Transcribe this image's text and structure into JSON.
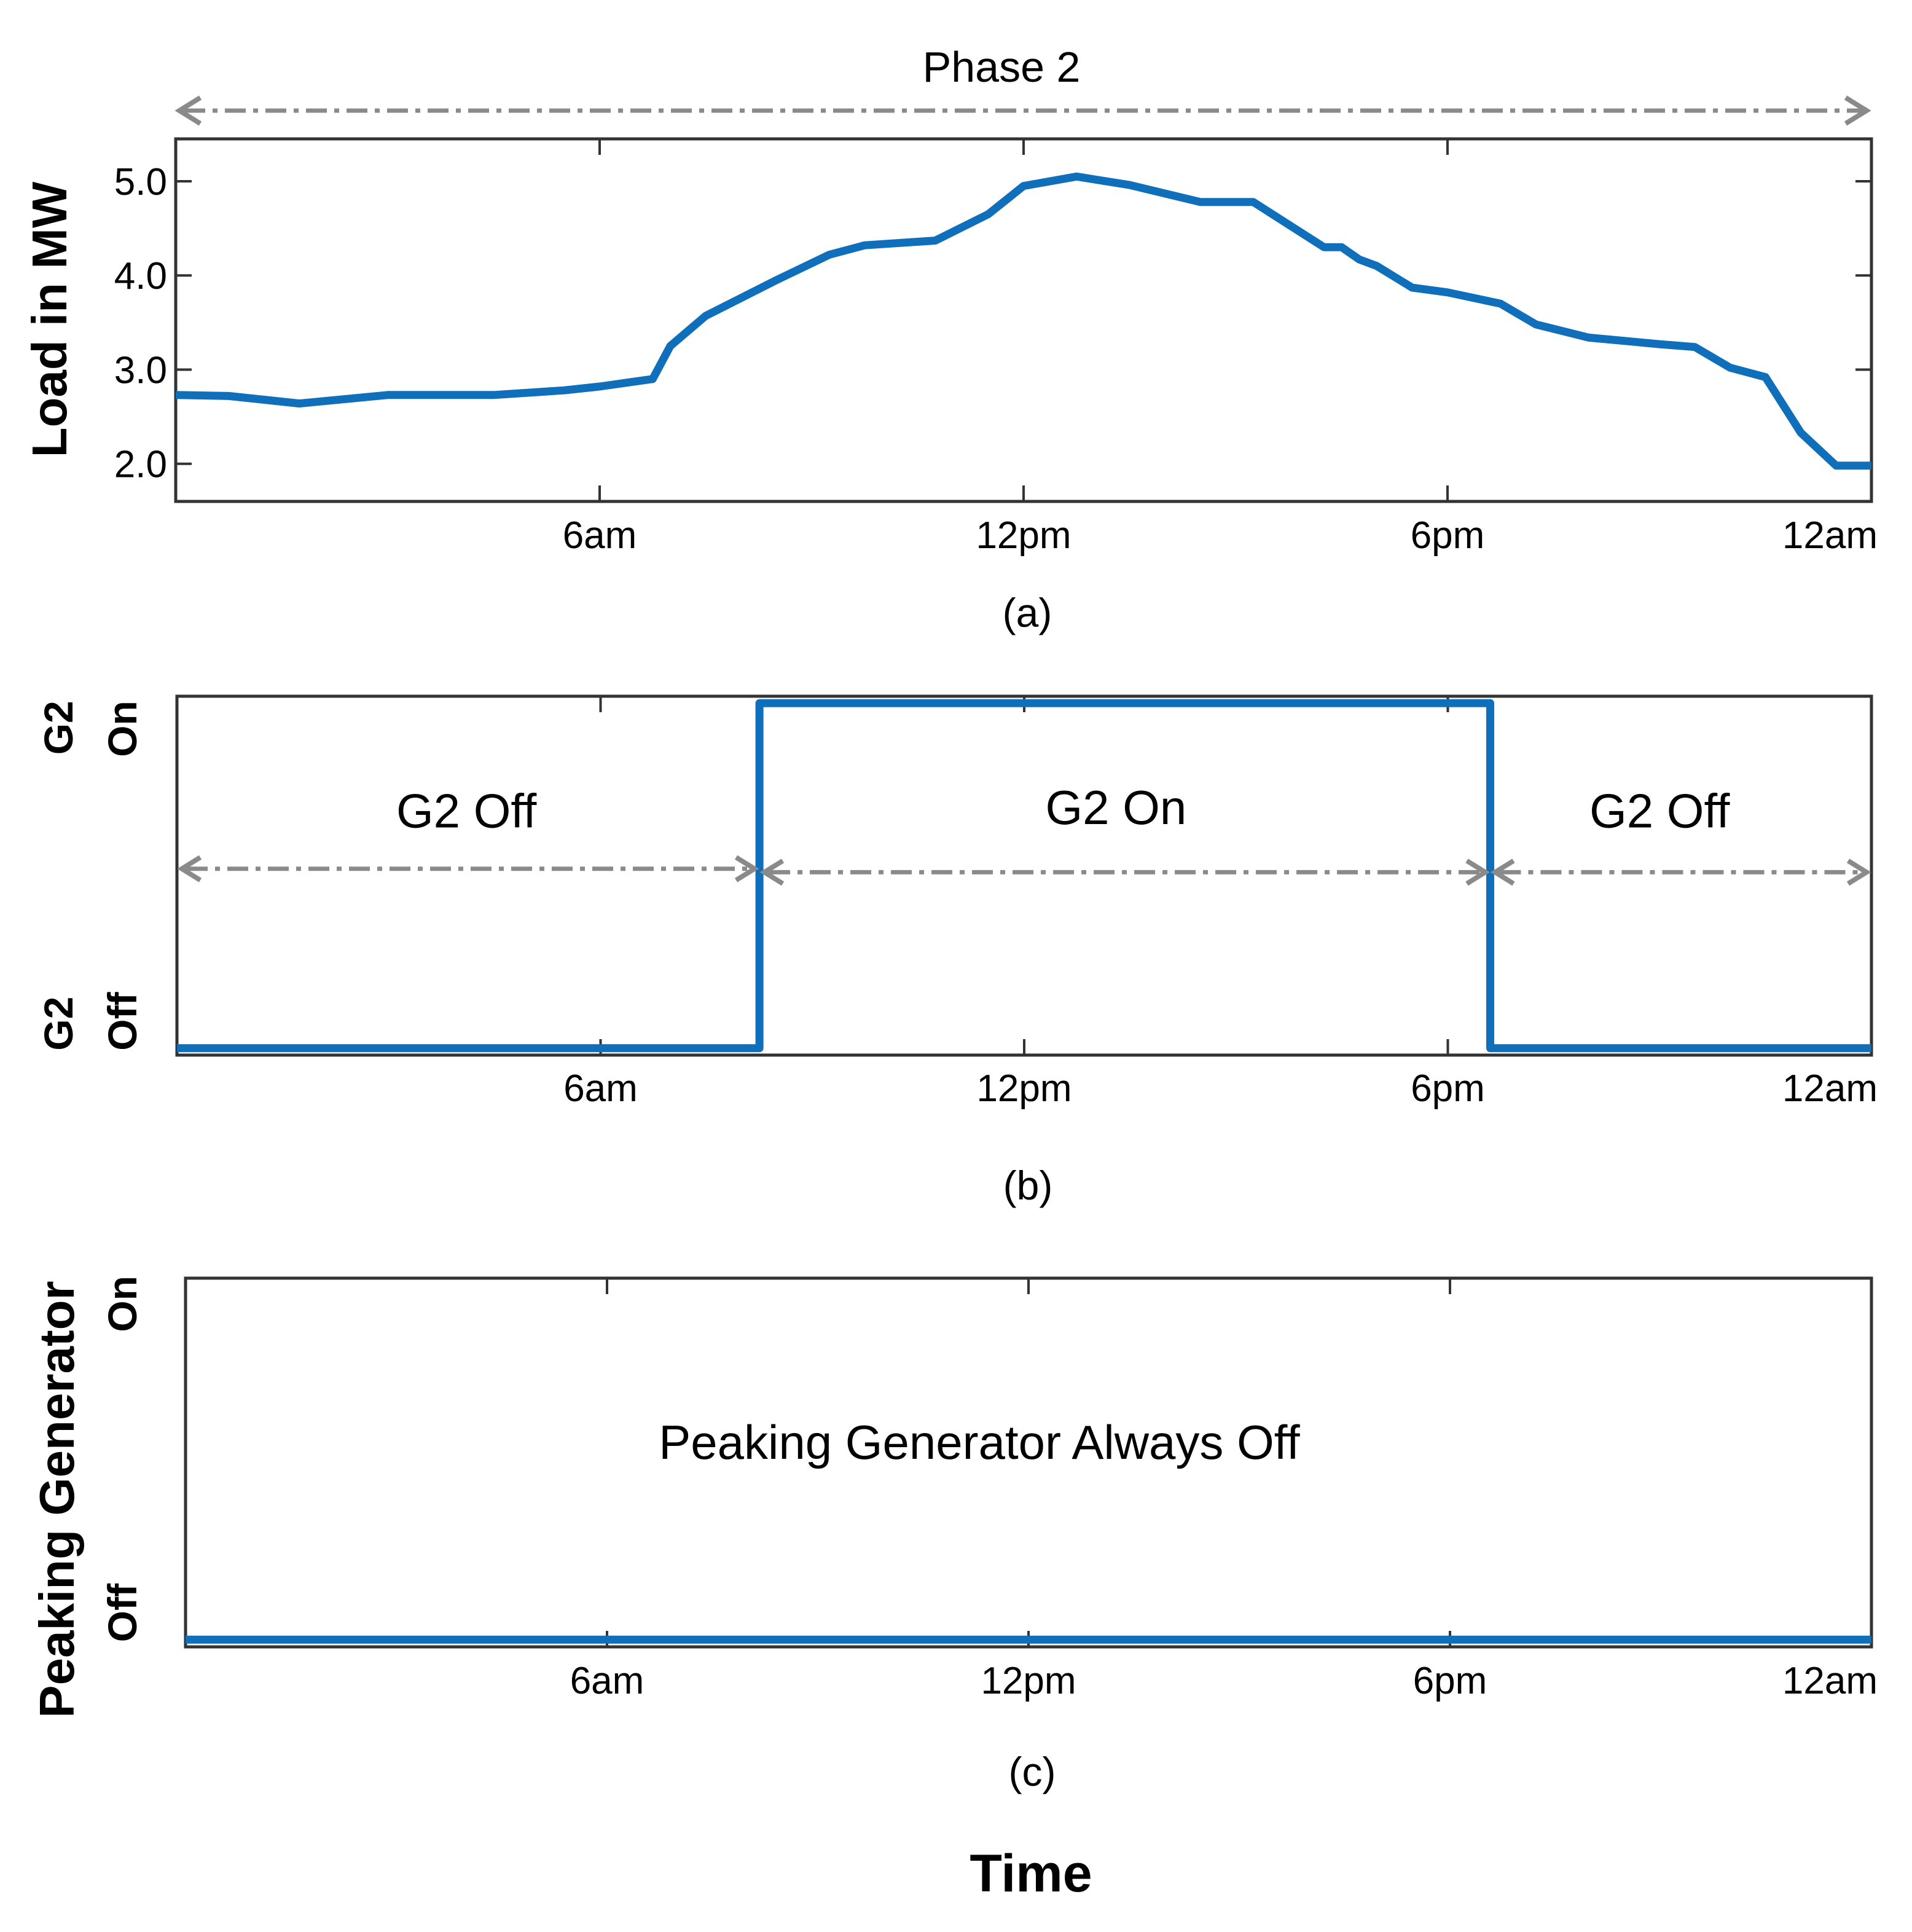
{
  "figure": {
    "top_annotation": "Phase 2",
    "x_axis_title": "Time"
  },
  "colors": {
    "series": "#0f6fba",
    "arrow": "#8a8a8a"
  },
  "chart_data": [
    {
      "id": "a",
      "type": "line",
      "caption": "(a)",
      "ylabel": "Load in MW",
      "xlim": [
        0,
        24
      ],
      "ylim": [
        1.6,
        5.45
      ],
      "xticks": [
        6,
        12,
        18,
        24
      ],
      "xtick_labels": [
        "6am",
        "12pm",
        "6pm",
        "12am"
      ],
      "yticks": [
        2.0,
        3.0,
        4.0,
        5.0
      ],
      "ytick_labels": [
        "2.0",
        "3.0",
        "4.0",
        "5.0"
      ],
      "series": [
        {
          "name": "Load",
          "x": [
            0,
            0.75,
            1.75,
            3,
            4.5,
            5.5,
            6,
            6.75,
            7,
            7.5,
            8.5,
            9.25,
            9.75,
            10.75,
            11.5,
            12,
            12.75,
            13.5,
            14.5,
            15.25,
            16.25,
            16.5,
            16.75,
            17,
            17.5,
            18,
            18.75,
            19.25,
            20,
            21,
            21.5,
            22,
            22.5,
            23,
            23.5,
            24
          ],
          "y": [
            2.73,
            2.72,
            2.64,
            2.73,
            2.73,
            2.78,
            2.82,
            2.9,
            3.25,
            3.57,
            3.95,
            4.22,
            4.32,
            4.37,
            4.65,
            4.95,
            5.05,
            4.96,
            4.78,
            4.78,
            4.3,
            4.3,
            4.17,
            4.1,
            3.87,
            3.82,
            3.7,
            3.48,
            3.34,
            3.27,
            3.24,
            3.02,
            2.92,
            2.33,
            1.98,
            1.98
          ]
        }
      ]
    },
    {
      "id": "b",
      "type": "line",
      "caption": "(b)",
      "ylabel_top": "G2",
      "state_on": "On",
      "state_off": "Off",
      "xlim": [
        0,
        24
      ],
      "ylim": [
        -0.02,
        1.02
      ],
      "xticks": [
        6,
        12,
        18,
        24
      ],
      "xtick_labels": [
        "6am",
        "12pm",
        "6pm",
        "12am"
      ],
      "series": [
        {
          "name": "G2 status",
          "x": [
            0,
            8.25,
            8.25,
            18.6,
            18.6,
            24
          ],
          "y": [
            0,
            0,
            1,
            1,
            0,
            0
          ]
        }
      ],
      "annotations": [
        {
          "text": "G2 Off",
          "x": 4.1,
          "y": 0.64,
          "from": 0,
          "to": 8.25,
          "arrow_y": 0.52
        },
        {
          "text": "G2 On",
          "x": 13.3,
          "y": 0.65,
          "from": 8.25,
          "to": 18.6,
          "arrow_y": 0.51
        },
        {
          "text": "G2 Off",
          "x": 21.0,
          "y": 0.64,
          "from": 18.6,
          "to": 24,
          "arrow_y": 0.51
        }
      ]
    },
    {
      "id": "c",
      "type": "line",
      "caption": "(c)",
      "ylabel_top": "Peaking Generator",
      "state_on": "On",
      "state_off": "Off",
      "xlim": [
        0,
        24
      ],
      "ylim": [
        -0.02,
        1.0
      ],
      "xticks": [
        6,
        12,
        18,
        24
      ],
      "xtick_labels": [
        "6am",
        "12pm",
        "6pm",
        "12am"
      ],
      "series": [
        {
          "name": "Peaking generator status",
          "x": [
            0,
            24
          ],
          "y": [
            0,
            0
          ]
        }
      ],
      "annotations": [
        {
          "text": "Peaking Generator Always Off",
          "x": 11.3,
          "y": 0.5
        }
      ]
    }
  ]
}
